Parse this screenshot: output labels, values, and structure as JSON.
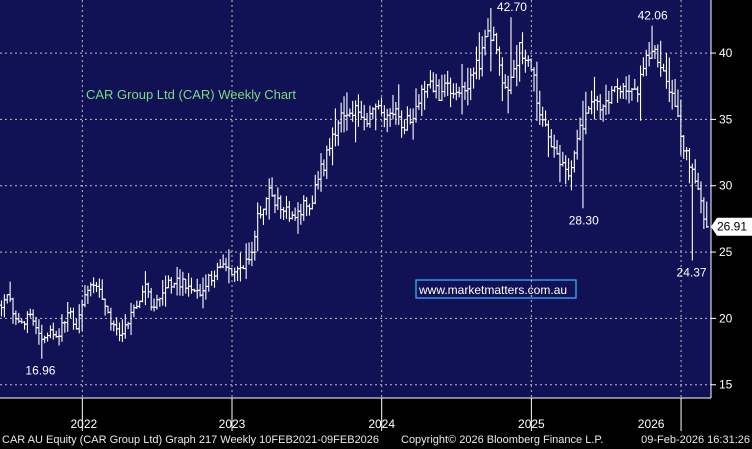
{
  "colors": {
    "plot_bg": "#111155",
    "axis_bg": "#000000",
    "bar": "#ffffff",
    "grid": "#bfbfbf",
    "title": "#7fd97f",
    "watermark_text": "#ffffff",
    "watermark_border": "#3fb7ff",
    "tick_text": "#ffffff",
    "last_price_bg": "#ffffff",
    "last_price_text": "#000000"
  },
  "footer": {
    "left": "CAR AU Equity (CAR Group Ltd) Graph 217 Weekly 10FEB2021-09FEB2026",
    "center": "Copyright© 2026 Bloomberg Finance L.P.",
    "right": "09-Feb-2026 16:31:26"
  },
  "chart_data": {
    "type": "ohlc",
    "title": "CAR Group Ltd (CAR) Weekly Chart",
    "watermark": "www.marketmatters.com.au",
    "ylim": [
      14,
      44
    ],
    "y_ticks": [
      15,
      20,
      25,
      30,
      35,
      40
    ],
    "x_range": [
      2021.45,
      2026.2
    ],
    "x_ticks": [
      {
        "label": "2022",
        "value": 2022.0
      },
      {
        "label": "2023",
        "value": 2023.0
      },
      {
        "label": "2024",
        "value": 2024.0
      },
      {
        "label": "2025",
        "value": 2025.0
      },
      {
        "label": "2026",
        "value": 2026.0
      }
    ],
    "x_label_positions": [
      2021.52,
      2022.5,
      2023.5,
      2024.5,
      2025.5,
      2026.1
    ],
    "last_price": 26.91,
    "annotations": [
      {
        "label": "16.96",
        "x": 2021.72,
        "y": 16.96,
        "pos": "below"
      },
      {
        "label": "42.70",
        "x": 2024.87,
        "y": 42.7,
        "pos": "above"
      },
      {
        "label": "28.30",
        "x": 2025.35,
        "y": 28.3,
        "pos": "below"
      },
      {
        "label": "42.06",
        "x": 2025.81,
        "y": 42.06,
        "pos": "above"
      },
      {
        "label": "24.37",
        "x": 2026.07,
        "y": 24.37,
        "pos": "below"
      }
    ],
    "key_points": [
      [
        2021.46,
        21.0
      ],
      [
        2021.5,
        22.0
      ],
      [
        2021.54,
        20.2
      ],
      [
        2021.6,
        19.6
      ],
      [
        2021.66,
        20.3
      ],
      [
        2021.72,
        18.2
      ],
      [
        2021.78,
        19.2
      ],
      [
        2021.84,
        18.6
      ],
      [
        2021.9,
        20.6
      ],
      [
        2021.96,
        19.4
      ],
      [
        2022.02,
        22.0
      ],
      [
        2022.08,
        22.4
      ],
      [
        2022.14,
        21.6
      ],
      [
        2022.2,
        19.6
      ],
      [
        2022.26,
        18.9
      ],
      [
        2022.3,
        19.6
      ],
      [
        2022.36,
        21.0
      ],
      [
        2022.42,
        22.4
      ],
      [
        2022.47,
        20.6
      ],
      [
        2022.52,
        21.8
      ],
      [
        2022.6,
        22.8
      ],
      [
        2022.7,
        22.6
      ],
      [
        2022.78,
        21.8
      ],
      [
        2022.86,
        23.2
      ],
      [
        2022.95,
        23.8
      ],
      [
        2023.05,
        23.6
      ],
      [
        2023.12,
        24.5
      ],
      [
        2023.18,
        28.0
      ],
      [
        2023.25,
        29.5
      ],
      [
        2023.32,
        28.4
      ],
      [
        2023.4,
        27.6
      ],
      [
        2023.47,
        28.4
      ],
      [
        2023.52,
        28.4
      ],
      [
        2023.58,
        30.8
      ],
      [
        2023.64,
        32.4
      ],
      [
        2023.7,
        34.6
      ],
      [
        2023.76,
        36.0
      ],
      [
        2023.82,
        35.6
      ],
      [
        2023.88,
        34.4
      ],
      [
        2023.94,
        35.6
      ],
      [
        2024.0,
        35.4
      ],
      [
        2024.06,
        36.0
      ],
      [
        2024.1,
        35.2
      ],
      [
        2024.14,
        34.6
      ],
      [
        2024.2,
        35.2
      ],
      [
        2024.26,
        36.6
      ],
      [
        2024.32,
        37.6
      ],
      [
        2024.38,
        37.0
      ],
      [
        2024.44,
        37.2
      ],
      [
        2024.5,
        37.0
      ],
      [
        2024.56,
        37.4
      ],
      [
        2024.62,
        38.4
      ],
      [
        2024.66,
        39.6
      ],
      [
        2024.72,
        41.5
      ],
      [
        2024.76,
        40.6
      ],
      [
        2024.8,
        38.0
      ],
      [
        2024.86,
        37.6
      ],
      [
        2024.92,
        40.2
      ],
      [
        2024.98,
        38.8
      ],
      [
        2025.02,
        37.8
      ],
      [
        2025.08,
        34.2
      ],
      [
        2025.14,
        33.4
      ],
      [
        2025.2,
        31.6
      ],
      [
        2025.26,
        31.2
      ],
      [
        2025.3,
        33.2
      ],
      [
        2025.36,
        35.4
      ],
      [
        2025.42,
        36.0
      ],
      [
        2025.5,
        36.6
      ],
      [
        2025.58,
        37.0
      ],
      [
        2025.66,
        37.6
      ],
      [
        2025.72,
        37.2
      ],
      [
        2025.76,
        40.4
      ],
      [
        2025.8,
        40.2
      ],
      [
        2025.86,
        38.8
      ],
      [
        2025.92,
        37.0
      ],
      [
        2025.98,
        35.2
      ],
      [
        2026.04,
        32.0
      ],
      [
        2026.1,
        30.2
      ],
      [
        2026.14,
        28.4
      ],
      [
        2026.17,
        26.91
      ]
    ]
  }
}
